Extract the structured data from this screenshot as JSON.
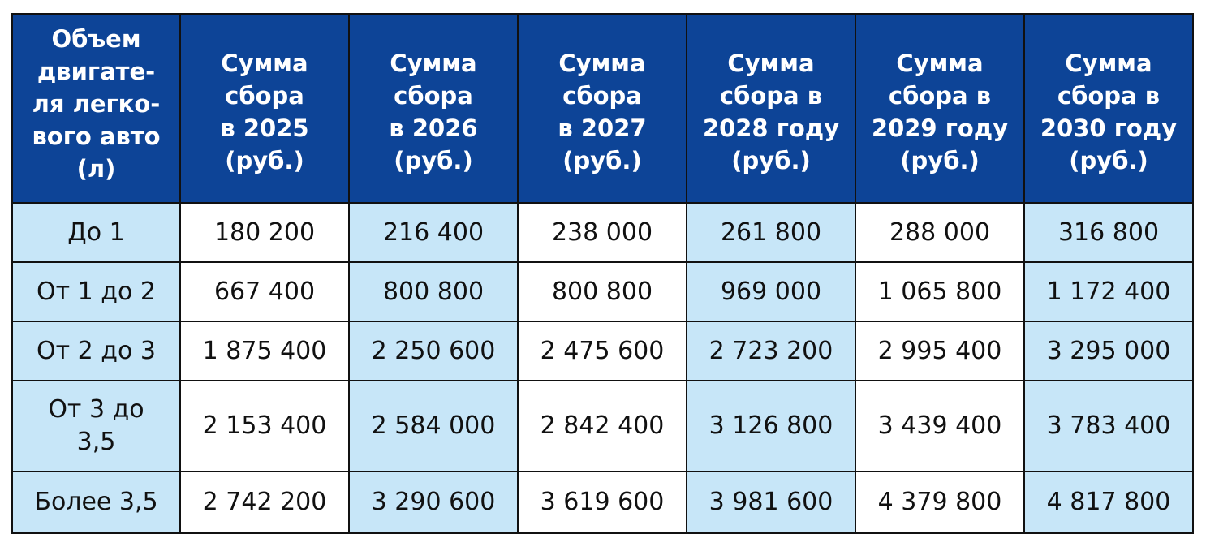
{
  "table": {
    "headers": [
      "Объем\nдвигате-\nля легко-\nвого авто\n(л)",
      "Сумма\nсбора\nв 2025\n(руб.)",
      "Сумма\nсбора\nв 2026\n(руб.)",
      "Сумма\nсбора\nв 2027\n(руб.)",
      "Сумма\nсбора в\n2028 году\n(руб.)",
      "Сумма\nсбора в\n2029 году\n(руб.)",
      "Сумма\nсбора в\n2030 году\n(руб.)"
    ],
    "rows": [
      [
        "До 1",
        "180 200",
        "216 400",
        "238 000",
        "261 800",
        "288 000",
        "316 800"
      ],
      [
        "От 1 до 2",
        "667 400",
        "800 800",
        "800 800",
        "969 000",
        "1 065 800",
        "1 172 400"
      ],
      [
        "От 2 до 3",
        "1 875 400",
        "2 250 600",
        "2 475 600",
        "2 723 200",
        "2 995 400",
        "3 295 000"
      ],
      [
        "От 3 до\n3,5",
        "2 153 400",
        "2 584 000",
        "2 842 400",
        "3 126 800",
        "3 439 400",
        "3 783 400"
      ],
      [
        "Более 3,5",
        "2 742 200",
        "3 290 600",
        "3 619 600",
        "3 981 600",
        "4 379 800",
        "4 817 800"
      ]
    ],
    "colors": {
      "header_bg": "#0d4497",
      "header_text": "#ffffff",
      "light_cell": "#c7e6f8",
      "white_cell": "#ffffff",
      "border": "#111111"
    }
  }
}
